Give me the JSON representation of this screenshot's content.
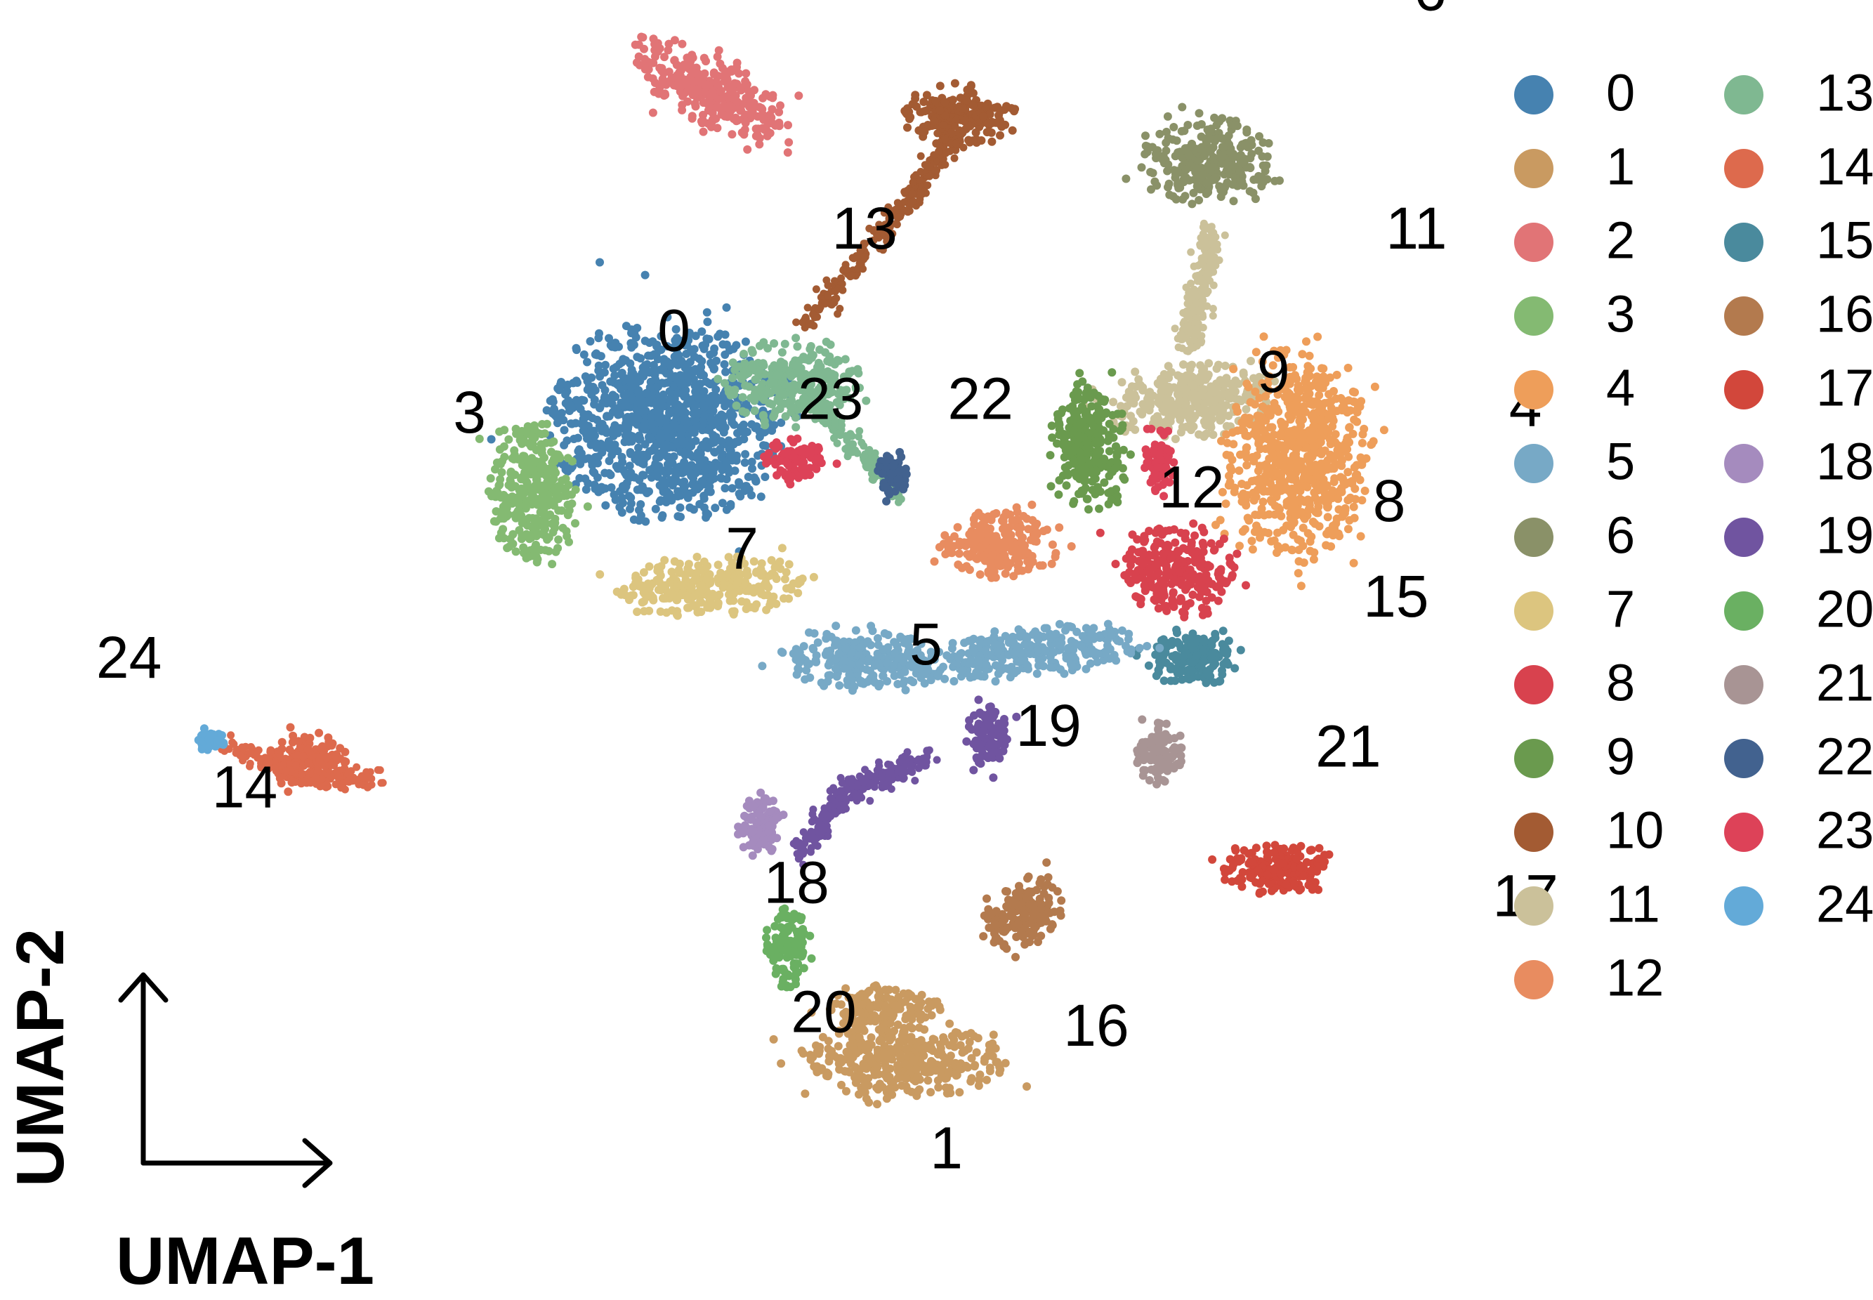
{
  "chart_data": {
    "type": "scatter",
    "title": "",
    "xlabel": "UMAP-1",
    "ylabel": "UMAP-2",
    "grid": false,
    "axes_style": "corner-arrows",
    "legend_position": "right",
    "legend_columns": 2,
    "clusters": [
      {
        "id": "0",
        "color": "#4682B0",
        "centroid": [
          -3.2,
          5.8
        ]
      },
      {
        "id": "1",
        "color": "#C99A61",
        "centroid": [
          0.8,
          -6.2
        ]
      },
      {
        "id": "2",
        "color": "#E17476",
        "centroid": [
          -1.9,
          11.6
        ]
      },
      {
        "id": "3",
        "color": "#84BA72",
        "centroid": [
          -6.2,
          4.6
        ]
      },
      {
        "id": "4",
        "color": "#EE9E5A",
        "centroid": [
          9.3,
          4.7
        ]
      },
      {
        "id": "5",
        "color": "#77A9C6",
        "centroid": [
          0.5,
          1.2
        ]
      },
      {
        "id": "6",
        "color": "#8A9168",
        "centroid": [
          7.9,
          10.8
        ]
      },
      {
        "id": "7",
        "color": "#DCC57F",
        "centroid": [
          -2.2,
          2.6
        ]
      },
      {
        "id": "8",
        "color": "#D8424E",
        "centroid": [
          7.3,
          3.3
        ]
      },
      {
        "id": "9",
        "color": "#6A9A4E",
        "centroid": [
          5.6,
          5.2
        ]
      },
      {
        "id": "10",
        "color": "#A35B33",
        "centroid": [
          1.3,
          11.2
        ]
      },
      {
        "id": "11",
        "color": "#CBC19A",
        "centroid": [
          7.7,
          7.3
        ]
      },
      {
        "id": "12",
        "color": "#E88C60",
        "centroid": [
          4.4,
          3.5
        ]
      },
      {
        "id": "13",
        "color": "#7FB891",
        "centroid": [
          -0.4,
          7.3
        ]
      },
      {
        "id": "14",
        "color": "#DD6A4D",
        "centroid": [
          -9.5,
          -0.9
        ]
      },
      {
        "id": "15",
        "color": "#4A8A9D",
        "centroid": [
          7.4,
          1.9
        ]
      },
      {
        "id": "16",
        "color": "#B37A4E",
        "centroid": [
          3.0,
          -4.4
        ]
      },
      {
        "id": "17",
        "color": "#D2473B",
        "centroid": [
          9.3,
          -2.5
        ]
      },
      {
        "id": "18",
        "color": "#A58BBE",
        "centroid": [
          -1.4,
          -2.3
        ]
      },
      {
        "id": "19",
        "color": "#7054A0",
        "centroid": [
          2.3,
          0.0
        ]
      },
      {
        "id": "20",
        "color": "#6AB062",
        "centroid": [
          -1.0,
          -4.2
        ]
      },
      {
        "id": "21",
        "color": "#A89494",
        "centroid": [
          6.7,
          -0.3
        ]
      },
      {
        "id": "22",
        "color": "#42628F",
        "centroid": [
          1.3,
          4.8
        ]
      },
      {
        "id": "23",
        "color": "#DD4258",
        "centroid": [
          -0.9,
          4.8
        ]
      },
      {
        "id": "24",
        "color": "#63AAD8",
        "centroid": [
          -11.2,
          1.0
        ]
      }
    ]
  }
}
